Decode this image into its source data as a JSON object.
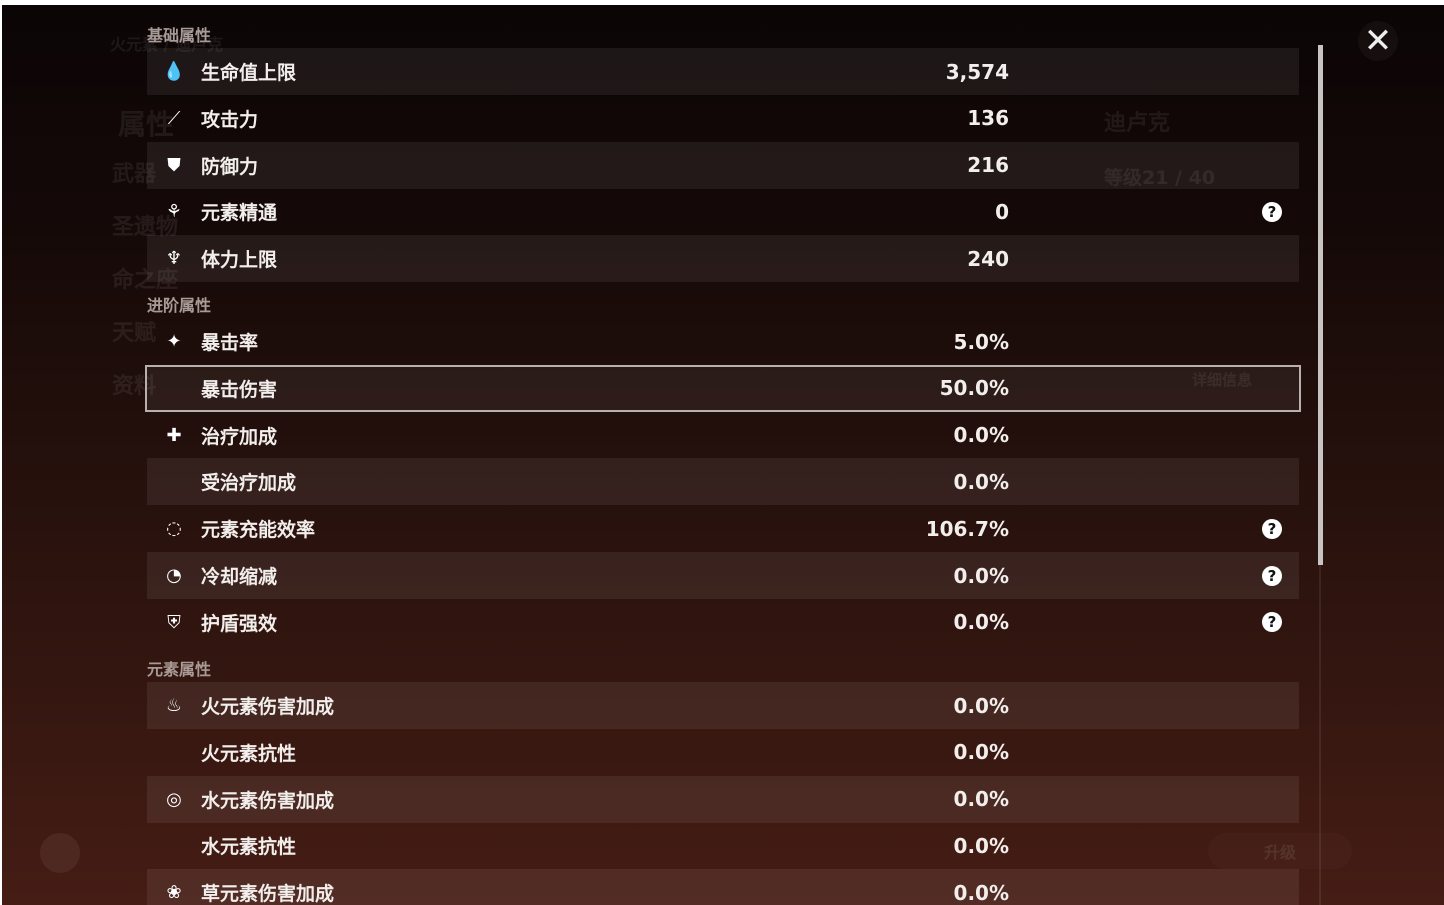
{
  "background": {
    "header": "火元素 / 迪卢克",
    "nav": [
      "属性",
      "武器",
      "圣遗物",
      "命之座",
      "天赋",
      "资料"
    ],
    "character_name": "迪卢克",
    "level": "等级21 / 40",
    "details_button": "详细信息",
    "upgrade_button": "升级"
  },
  "sections": [
    {
      "title": "基础属性",
      "rows": [
        {
          "icon": "hp-drop-icon",
          "glyph": "💧",
          "label": "生命值上限",
          "value": "3,574",
          "help": false
        },
        {
          "icon": "attack-sword-icon",
          "glyph": "⟋",
          "label": "攻击力",
          "value": "136",
          "help": false
        },
        {
          "icon": "defense-shield-icon",
          "glyph": "⛊",
          "label": "防御力",
          "value": "216",
          "help": false
        },
        {
          "icon": "elemental-mastery-icon",
          "glyph": "⚘",
          "label": "元素精通",
          "value": "0",
          "help": true
        },
        {
          "icon": "stamina-icon",
          "glyph": "♆",
          "label": "体力上限",
          "value": "240",
          "help": false
        }
      ]
    },
    {
      "title": "进阶属性",
      "rows": [
        {
          "icon": "crit-rate-icon",
          "glyph": "✦",
          "label": "暴击率",
          "value": "5.0%",
          "help": false
        },
        {
          "icon": "",
          "glyph": "",
          "label": "暴击伤害",
          "value": "50.0%",
          "help": false
        },
        {
          "icon": "healing-cross-icon",
          "glyph": "✚",
          "label": "治疗加成",
          "value": "0.0%",
          "help": false
        },
        {
          "icon": "",
          "glyph": "",
          "label": "受治疗加成",
          "value": "0.0%",
          "help": false
        },
        {
          "icon": "energy-recharge-icon",
          "glyph": "◌",
          "label": "元素充能效率",
          "value": "106.7%",
          "help": true
        },
        {
          "icon": "cooldown-icon",
          "glyph": "◔",
          "label": "冷却缩减",
          "value": "0.0%",
          "help": true
        },
        {
          "icon": "shield-strength-icon",
          "glyph": "⛨",
          "label": "护盾强效",
          "value": "0.0%",
          "help": true
        }
      ]
    },
    {
      "title": "元素属性",
      "rows": [
        {
          "icon": "pyro-icon",
          "glyph": "♨",
          "label": "火元素伤害加成",
          "value": "0.0%",
          "help": false
        },
        {
          "icon": "",
          "glyph": "",
          "label": "火元素抗性",
          "value": "0.0%",
          "help": false
        },
        {
          "icon": "hydro-icon",
          "glyph": "◎",
          "label": "水元素伤害加成",
          "value": "0.0%",
          "help": false
        },
        {
          "icon": "",
          "glyph": "",
          "label": "水元素抗性",
          "value": "0.0%",
          "help": false
        },
        {
          "icon": "dendro-icon",
          "glyph": "❀",
          "label": "草元素伤害加成",
          "value": "0.0%",
          "help": false
        }
      ]
    }
  ],
  "help_glyph": "?",
  "close_glyph": "✕",
  "selected_row": "暴击伤害"
}
